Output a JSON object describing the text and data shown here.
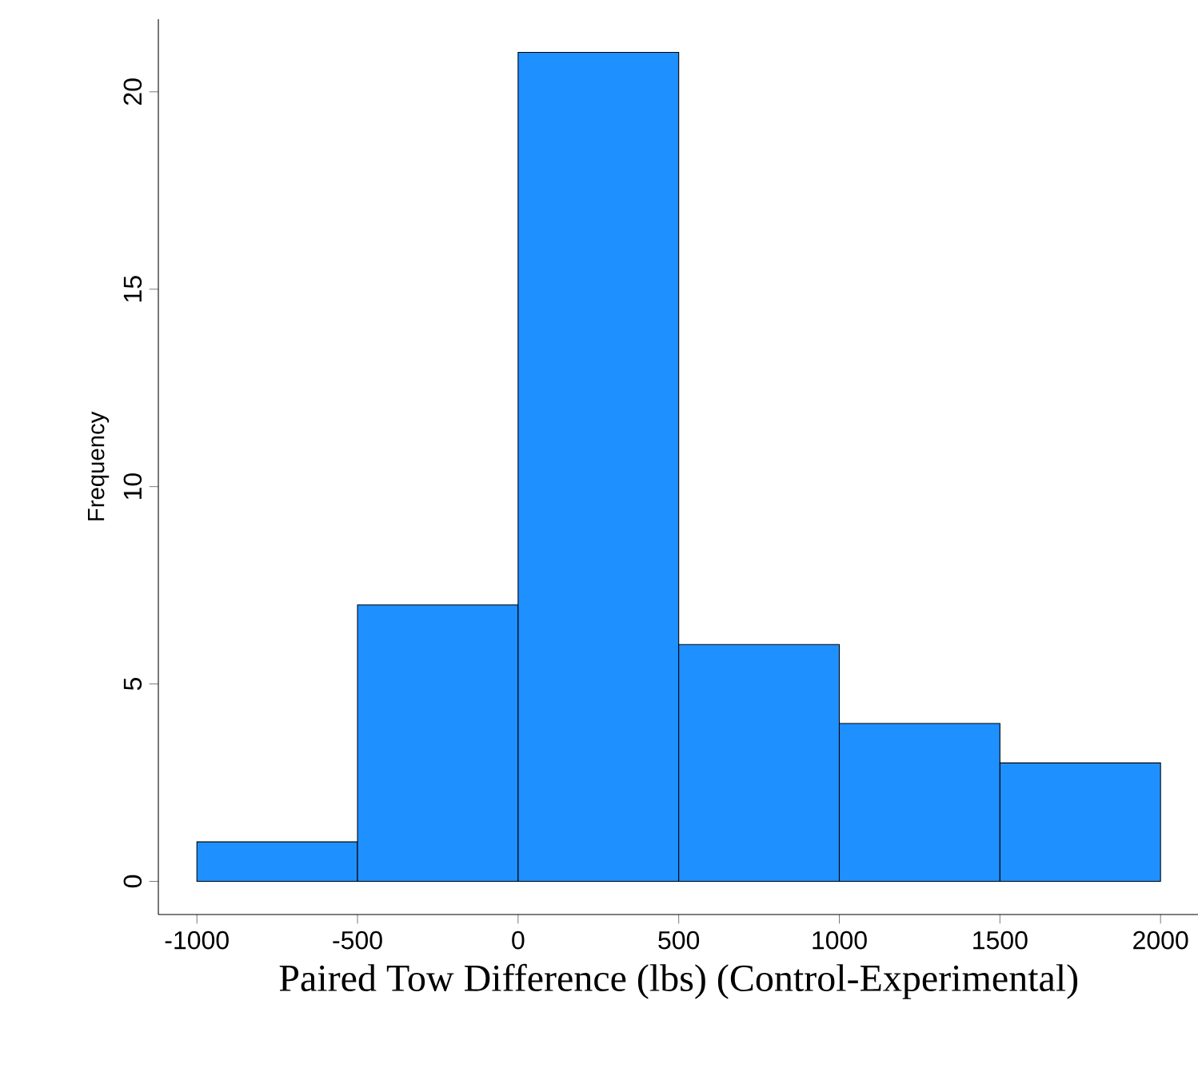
{
  "chart_data": {
    "type": "histogram",
    "xlabel": "Paired Tow Difference (lbs) (Control-Experimental)",
    "ylabel": "Frequency",
    "bins": [
      -1000,
      -500,
      0,
      500,
      1000,
      1500,
      2000
    ],
    "values": [
      1,
      7,
      21,
      6,
      4,
      3
    ],
    "color": "#1e90ff",
    "xlim": [
      -1120,
      2120
    ],
    "ylim": [
      -0.84,
      21.84
    ],
    "xticks": [
      -1000,
      -500,
      0,
      500,
      1000,
      1500,
      2000
    ],
    "yticks": [
      0,
      5,
      10,
      15,
      20
    ],
    "grid": false
  }
}
